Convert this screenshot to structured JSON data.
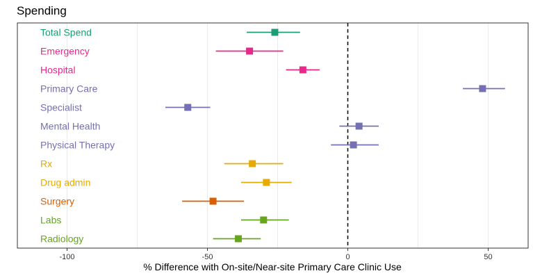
{
  "chart_data": {
    "type": "forest",
    "title": "Spending",
    "xlabel": "% Difference with On-site/Near-site Primary Care Clinic Use",
    "ylabel": "",
    "xlim": [
      -115,
      64
    ],
    "xticks": [
      -100,
      -50,
      0,
      50
    ],
    "xtick_labels": [
      "-100",
      "-50",
      "0",
      "50"
    ],
    "reference_line": 0,
    "grid": "vertical",
    "categories": [
      {
        "label": "Total Spend",
        "estimate": -26,
        "lower": -36,
        "upper": -17,
        "color": "#1b9e77"
      },
      {
        "label": "Emergency",
        "estimate": -35,
        "lower": -47,
        "upper": -23,
        "color": "#e7298a"
      },
      {
        "label": "Hospital",
        "estimate": -16,
        "lower": -22,
        "upper": -10,
        "color": "#e7298a"
      },
      {
        "label": "Primary Care",
        "estimate": 48,
        "lower": 41,
        "upper": 56,
        "color": "#7570b3"
      },
      {
        "label": "Specialist",
        "estimate": -57,
        "lower": -65,
        "upper": -49,
        "color": "#7570b3"
      },
      {
        "label": "Mental Health",
        "estimate": 4,
        "lower": -3,
        "upper": 11,
        "color": "#7570b3"
      },
      {
        "label": "Physical Therapy",
        "estimate": 2,
        "lower": -6,
        "upper": 11,
        "color": "#7570b3"
      },
      {
        "label": "Rx",
        "estimate": -34,
        "lower": -44,
        "upper": -23,
        "color": "#e6ab02"
      },
      {
        "label": "Drug admin",
        "estimate": -29,
        "lower": -38,
        "upper": -20,
        "color": "#e6ab02"
      },
      {
        "label": "Surgery",
        "estimate": -48,
        "lower": -59,
        "upper": -37,
        "color": "#d95f02"
      },
      {
        "label": "Labs",
        "estimate": -30,
        "lower": -38,
        "upper": -21,
        "color": "#66a61e"
      },
      {
        "label": "Radiology",
        "estimate": -39,
        "lower": -48,
        "upper": -31,
        "color": "#66a61e"
      }
    ]
  }
}
